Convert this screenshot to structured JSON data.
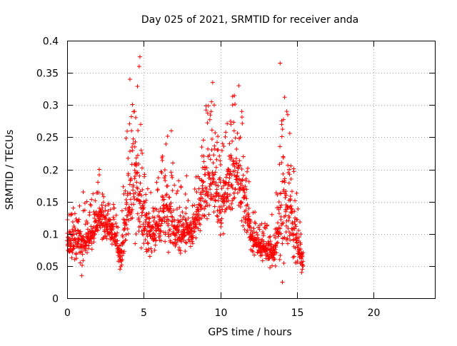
{
  "chart_data": {
    "type": "scatter",
    "title": "Day 025 of 2021, SRMTID for receiver anda",
    "xlabel": "GPS time / hours",
    "ylabel": "SRMTID / TECUs",
    "xlim": [
      0,
      24
    ],
    "ylim": [
      0,
      0.4
    ],
    "x_ticks": [
      0,
      5,
      10,
      15,
      20
    ],
    "x_tick_labels": [
      "0",
      "5",
      "10",
      "15",
      "20"
    ],
    "y_ticks": [
      0,
      0.05,
      0.1,
      0.15,
      0.2,
      0.25,
      0.3,
      0.35,
      0.4
    ],
    "y_tick_labels": [
      "0",
      "0.05",
      "0.1",
      "0.15",
      "0.2",
      "0.25",
      "0.3",
      "0.35",
      "0.4"
    ],
    "grid": true,
    "marker": "plus",
    "colors": {
      "series": "#ff0000",
      "grid": "#a0a0a0",
      "axis": "#000000"
    },
    "envelope_hours": [
      0,
      0.5,
      1,
      1.5,
      2,
      2.5,
      3,
      3.5,
      4,
      4.5,
      5,
      5.5,
      6,
      6.5,
      7,
      7.5,
      8,
      8.5,
      9,
      9.5,
      10,
      10.5,
      11,
      11.5,
      12,
      12.5,
      13,
      13.5,
      14,
      14.5,
      15,
      15.4
    ],
    "envelope_low": [
      0.06,
      0.06,
      0.05,
      0.07,
      0.08,
      0.09,
      0.08,
      0.045,
      0.07,
      0.08,
      0.07,
      0.07,
      0.08,
      0.07,
      0.06,
      0.07,
      0.07,
      0.09,
      0.1,
      0.12,
      0.08,
      0.12,
      0.13,
      0.1,
      0.07,
      0.06,
      0.05,
      0.04,
      0.03,
      0.06,
      0.05,
      0.04
    ],
    "envelope_high": [
      0.14,
      0.14,
      0.16,
      0.15,
      0.2,
      0.17,
      0.15,
      0.1,
      0.34,
      0.37,
      0.23,
      0.16,
      0.19,
      0.27,
      0.18,
      0.19,
      0.16,
      0.2,
      0.32,
      0.34,
      0.24,
      0.3,
      0.33,
      0.28,
      0.15,
      0.13,
      0.12,
      0.15,
      0.36,
      0.29,
      0.16,
      0.1
    ],
    "series": [
      {
        "name": "SRMTID anda",
        "values": [
          [
            0.05,
            0.095
          ],
          [
            0.15,
            0.072
          ],
          [
            0.25,
            0.13
          ],
          [
            0.4,
            0.14
          ],
          [
            0.55,
            0.105
          ],
          [
            0.7,
            0.088
          ],
          [
            0.85,
            0.055
          ],
          [
            0.95,
            0.035
          ],
          [
            1.05,
            0.165
          ],
          [
            1.2,
            0.115
          ],
          [
            1.4,
            0.1
          ],
          [
            1.6,
            0.085
          ],
          [
            1.8,
            0.13
          ],
          [
            2.0,
            0.105
          ],
          [
            2.1,
            0.2
          ],
          [
            2.3,
            0.14
          ],
          [
            2.5,
            0.125
          ],
          [
            2.7,
            0.145
          ],
          [
            2.9,
            0.115
          ],
          [
            3.1,
            0.095
          ],
          [
            3.3,
            0.075
          ],
          [
            3.45,
            0.045
          ],
          [
            3.6,
            0.06
          ],
          [
            3.8,
            0.09
          ],
          [
            4.0,
            0.1
          ],
          [
            4.1,
            0.34
          ],
          [
            4.2,
            0.26
          ],
          [
            4.3,
            0.24
          ],
          [
            4.4,
            0.29
          ],
          [
            4.5,
            0.21
          ],
          [
            4.6,
            0.17
          ],
          [
            4.7,
            0.36
          ],
          [
            4.75,
            0.375
          ],
          [
            4.8,
            0.27
          ],
          [
            4.9,
            0.225
          ],
          [
            5.0,
            0.15
          ],
          [
            5.2,
            0.1
          ],
          [
            5.4,
            0.065
          ],
          [
            5.6,
            0.14
          ],
          [
            5.8,
            0.09
          ],
          [
            6.0,
            0.1
          ],
          [
            6.2,
            0.12
          ],
          [
            6.4,
            0.19
          ],
          [
            6.6,
            0.14
          ],
          [
            6.8,
            0.26
          ],
          [
            6.9,
            0.21
          ],
          [
            7.0,
            0.12
          ],
          [
            7.2,
            0.09
          ],
          [
            7.4,
            0.07
          ],
          [
            7.6,
            0.1
          ],
          [
            7.8,
            0.19
          ],
          [
            8.0,
            0.11
          ],
          [
            8.2,
            0.085
          ],
          [
            8.4,
            0.13
          ],
          [
            8.6,
            0.17
          ],
          [
            8.8,
            0.14
          ],
          [
            9.0,
            0.2
          ],
          [
            9.2,
            0.22
          ],
          [
            9.4,
            0.29
          ],
          [
            9.5,
            0.335
          ],
          [
            9.6,
            0.3
          ],
          [
            9.8,
            0.23
          ],
          [
            10.0,
            0.18
          ],
          [
            10.2,
            0.1
          ],
          [
            10.4,
            0.15
          ],
          [
            10.5,
            0.2
          ],
          [
            10.6,
            0.24
          ],
          [
            10.7,
            0.27
          ],
          [
            10.8,
            0.3
          ],
          [
            10.9,
            0.26
          ],
          [
            11.0,
            0.21
          ],
          [
            11.1,
            0.19
          ],
          [
            11.2,
            0.33
          ],
          [
            11.3,
            0.25
          ],
          [
            11.4,
            0.29
          ],
          [
            11.5,
            0.22
          ],
          [
            11.6,
            0.16
          ],
          [
            11.8,
            0.13
          ],
          [
            12.0,
            0.11
          ],
          [
            12.2,
            0.09
          ],
          [
            12.5,
            0.075
          ],
          [
            12.8,
            0.1
          ],
          [
            13.0,
            0.085
          ],
          [
            13.3,
            0.07
          ],
          [
            13.6,
            0.05
          ],
          [
            13.9,
            0.365
          ],
          [
            14.0,
            0.27
          ],
          [
            14.05,
            0.025
          ],
          [
            14.1,
            0.22
          ],
          [
            14.2,
            0.18
          ],
          [
            14.3,
            0.16
          ],
          [
            14.4,
            0.285
          ],
          [
            14.5,
            0.2
          ],
          [
            14.6,
            0.1
          ],
          [
            14.8,
            0.08
          ],
          [
            15.0,
            0.055
          ],
          [
            15.2,
            0.065
          ],
          [
            15.3,
            0.04
          ],
          [
            15.35,
            0.045
          ],
          [
            15.4,
            0.05
          ]
        ]
      }
    ]
  }
}
